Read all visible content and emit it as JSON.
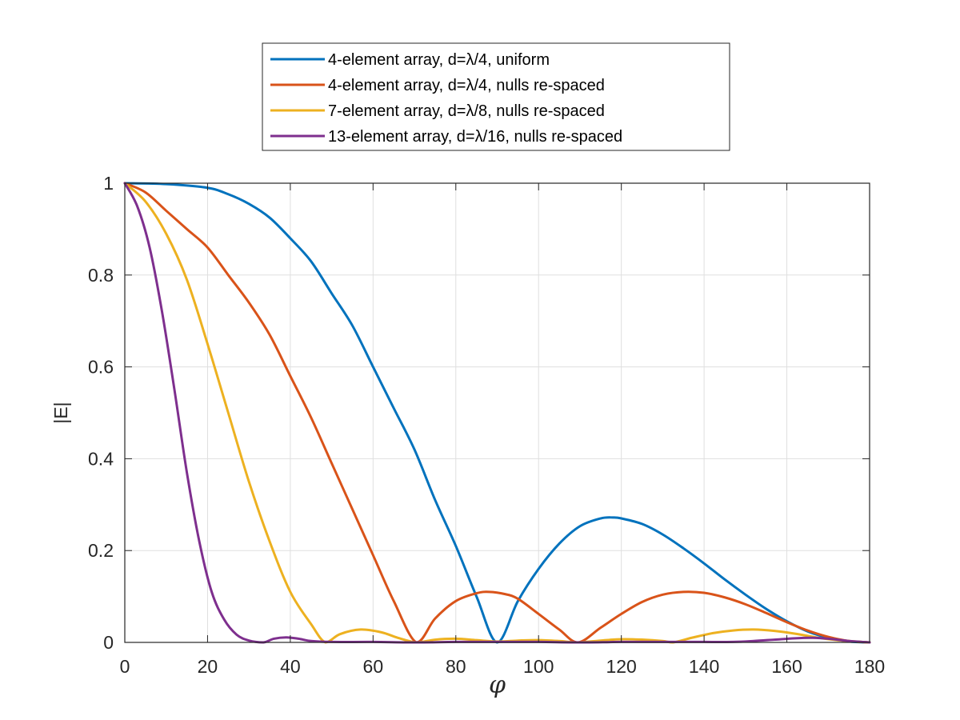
{
  "chart_data": {
    "type": "line",
    "xlabel": "φ",
    "ylabel": "|E|",
    "xlim": [
      0,
      180
    ],
    "ylim": [
      0,
      1
    ],
    "xticks": [
      0,
      20,
      40,
      60,
      80,
      100,
      120,
      140,
      160,
      180
    ],
    "yticks": [
      0,
      0.2,
      0.4,
      0.6,
      0.8,
      1
    ],
    "xtick_labels": [
      "0",
      "20",
      "40",
      "60",
      "80",
      "100",
      "120",
      "140",
      "160",
      "180"
    ],
    "ytick_labels": [
      "0",
      "0.2",
      "0.4",
      "0.6",
      "0.8",
      "1"
    ],
    "grid": true,
    "legend_position": "top, outside the plot area",
    "series": [
      {
        "name": "4-element array, d=λ/4, uniform",
        "color": "#0072BD",
        "x": [
          0,
          10,
          20,
          25,
          30,
          35,
          40,
          45,
          50,
          55,
          60,
          65,
          70,
          75,
          80,
          85,
          90,
          95,
          100,
          105,
          110,
          115,
          118,
          120,
          125,
          130,
          135,
          140,
          145,
          150,
          155,
          160,
          165,
          170,
          175,
          180
        ],
        "y": [
          1,
          0.998,
          0.99,
          0.976,
          0.955,
          0.925,
          0.88,
          0.83,
          0.76,
          0.69,
          0.6,
          0.51,
          0.42,
          0.31,
          0.21,
          0.1,
          0,
          0.09,
          0.16,
          0.215,
          0.253,
          0.27,
          0.272,
          0.27,
          0.258,
          0.235,
          0.205,
          0.172,
          0.137,
          0.104,
          0.073,
          0.046,
          0.024,
          0.01,
          0.002,
          0
        ]
      },
      {
        "name": "4-element array, d=λ/4, nulls re-spaced",
        "color": "#D95319",
        "x": [
          0,
          5,
          10,
          15,
          20,
          25,
          30,
          35,
          40,
          45,
          50,
          55,
          60,
          65,
          70.5,
          75,
          80,
          85,
          88,
          92,
          95,
          100,
          105,
          109.5,
          115,
          120,
          125,
          130,
          135,
          140,
          145,
          150,
          155,
          160,
          165,
          170,
          175,
          180
        ],
        "y": [
          1,
          0.98,
          0.94,
          0.9,
          0.86,
          0.8,
          0.74,
          0.67,
          0.58,
          0.49,
          0.39,
          0.29,
          0.19,
          0.09,
          0,
          0.052,
          0.09,
          0.107,
          0.11,
          0.105,
          0.095,
          0.062,
          0.028,
          0,
          0.032,
          0.062,
          0.088,
          0.104,
          0.11,
          0.108,
          0.098,
          0.083,
          0.064,
          0.044,
          0.026,
          0.012,
          0.003,
          0
        ]
      },
      {
        "name": "7-element array, d=λ/8, nulls re-spaced",
        "color": "#EDB120",
        "x": [
          0,
          5,
          10,
          15,
          20,
          25,
          30,
          35,
          40,
          45,
          48.5,
          52,
          57,
          62,
          66,
          70.5,
          75,
          80,
          85,
          90,
          95,
          100,
          105,
          109.5,
          115,
          120,
          125,
          130,
          132.5,
          137,
          142,
          147,
          152,
          157,
          162,
          167,
          172,
          180
        ],
        "y": [
          1,
          0.96,
          0.89,
          0.79,
          0.65,
          0.5,
          0.35,
          0.22,
          0.11,
          0.04,
          0,
          0.018,
          0.028,
          0.022,
          0.01,
          0,
          0.006,
          0.008,
          0.005,
          0.002,
          0.004,
          0.005,
          0.003,
          0,
          0.004,
          0.007,
          0.006,
          0.003,
          0,
          0.01,
          0.02,
          0.026,
          0.028,
          0.025,
          0.019,
          0.011,
          0.005,
          0
        ]
      },
      {
        "name": "13-element array, d=λ/16, nulls re-spaced",
        "color": "#7E2F8E",
        "x": [
          0,
          3,
          6,
          9,
          12,
          15,
          18,
          21,
          24,
          27,
          30,
          33.5,
          36,
          39,
          42,
          45,
          50,
          60,
          70,
          80,
          90,
          100,
          110,
          120,
          130,
          140,
          147,
          152,
          157,
          162,
          166,
          170,
          175,
          180
        ],
        "y": [
          1,
          0.95,
          0.86,
          0.72,
          0.55,
          0.37,
          0.22,
          0.11,
          0.05,
          0.017,
          0.004,
          0,
          0.008,
          0.011,
          0.008,
          0.003,
          0.001,
          0.001,
          0,
          0.001,
          0.001,
          0.001,
          0,
          0.001,
          0.001,
          0.001,
          0.001,
          0.003,
          0.006,
          0.009,
          0.01,
          0.008,
          0.003,
          0
        ]
      }
    ]
  }
}
